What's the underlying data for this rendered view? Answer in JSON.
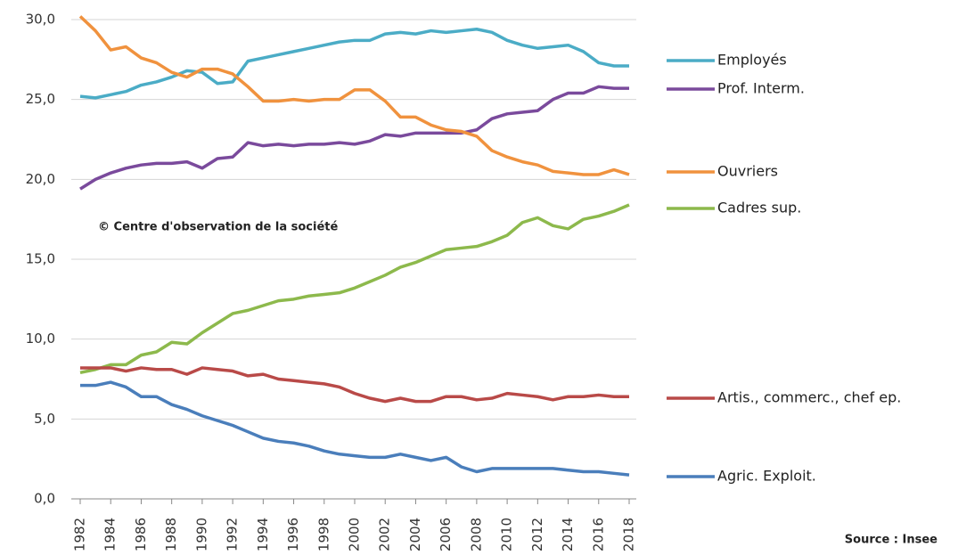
{
  "chart_data": {
    "type": "line",
    "x": [
      1982,
      1983,
      1984,
      1985,
      1986,
      1987,
      1988,
      1989,
      1990,
      1991,
      1992,
      1993,
      1994,
      1995,
      1996,
      1997,
      1998,
      1999,
      2000,
      2001,
      2002,
      2003,
      2004,
      2005,
      2006,
      2007,
      2008,
      2009,
      2010,
      2011,
      2012,
      2013,
      2014,
      2015,
      2016,
      2017,
      2018
    ],
    "xlim": [
      1982,
      2018
    ],
    "xticks": [
      1982,
      1984,
      1986,
      1988,
      1990,
      1992,
      1994,
      1996,
      1998,
      2000,
      2002,
      2004,
      2006,
      2008,
      2010,
      2012,
      2014,
      2016,
      2018
    ],
    "ylim": [
      0,
      30
    ],
    "yticks": [
      {
        "value": 0,
        "label": "0,0"
      },
      {
        "value": 5,
        "label": "5,0"
      },
      {
        "value": 10,
        "label": "10,0"
      },
      {
        "value": 15,
        "label": "15,0"
      },
      {
        "value": 20,
        "label": "20,0"
      },
      {
        "value": 25,
        "label": "25,0"
      },
      {
        "value": 30,
        "label": "30,0"
      }
    ],
    "grid": true,
    "annotations": [
      "© Centre d'observation de la société",
      "Source : Insee"
    ],
    "series": [
      {
        "name": "Employés",
        "color": "#4bacc6",
        "values": [
          25.2,
          25.1,
          25.3,
          25.5,
          25.9,
          26.1,
          26.4,
          26.8,
          26.7,
          26.0,
          26.1,
          27.4,
          27.6,
          27.8,
          28.0,
          28.2,
          28.4,
          28.6,
          28.7,
          28.7,
          29.1,
          29.2,
          29.1,
          29.3,
          29.2,
          29.3,
          29.4,
          29.2,
          28.7,
          28.4,
          28.2,
          28.3,
          28.4,
          28.0,
          27.3,
          27.1,
          27.1
        ]
      },
      {
        "name": "Prof. Interm.",
        "color": "#7a4a9c",
        "values": [
          19.4,
          20.0,
          20.4,
          20.7,
          20.9,
          21.0,
          21.0,
          21.1,
          20.7,
          21.3,
          21.4,
          22.3,
          22.1,
          22.2,
          22.1,
          22.2,
          22.2,
          22.3,
          22.2,
          22.4,
          22.8,
          22.7,
          22.9,
          22.9,
          22.9,
          22.9,
          23.1,
          23.8,
          24.1,
          24.2,
          24.3,
          25.0,
          25.4,
          25.4,
          25.8,
          25.7,
          25.7
        ]
      },
      {
        "name": "Ouvriers",
        "color": "#f0923e",
        "values": [
          30.2,
          29.3,
          28.1,
          28.3,
          27.6,
          27.3,
          26.7,
          26.4,
          26.9,
          26.9,
          26.6,
          25.8,
          24.9,
          24.9,
          25.0,
          24.9,
          25.0,
          25.0,
          25.6,
          25.6,
          24.9,
          23.9,
          23.9,
          23.4,
          23.1,
          23.0,
          22.7,
          21.8,
          21.4,
          21.1,
          20.9,
          20.5,
          20.4,
          20.3,
          20.3,
          20.6,
          20.3
        ]
      },
      {
        "name": "Cadres sup.",
        "color": "#8db94c",
        "values": [
          7.9,
          8.1,
          8.4,
          8.4,
          9.0,
          9.2,
          9.8,
          9.7,
          10.4,
          11.0,
          11.6,
          11.8,
          12.1,
          12.4,
          12.5,
          12.7,
          12.8,
          12.9,
          13.2,
          13.6,
          14.0,
          14.5,
          14.8,
          15.2,
          15.6,
          15.7,
          15.8,
          16.1,
          16.5,
          17.3,
          17.6,
          17.1,
          16.9,
          17.5,
          17.7,
          18.0,
          18.4
        ]
      },
      {
        "name": "Artis., commerc., chef ep.",
        "color": "#b94a48",
        "values": [
          8.2,
          8.2,
          8.2,
          8.0,
          8.2,
          8.1,
          8.1,
          7.8,
          8.2,
          8.1,
          8.0,
          7.7,
          7.8,
          7.5,
          7.4,
          7.3,
          7.2,
          7.0,
          6.6,
          6.3,
          6.1,
          6.3,
          6.1,
          6.1,
          6.4,
          6.4,
          6.2,
          6.3,
          6.6,
          6.5,
          6.4,
          6.2,
          6.4,
          6.4,
          6.5,
          6.4,
          6.4
        ]
      },
      {
        "name": "Agric. Exploit.",
        "color": "#4a7ebb",
        "values": [
          7.1,
          7.1,
          7.3,
          7.0,
          6.4,
          6.4,
          5.9,
          5.6,
          5.2,
          4.9,
          4.6,
          4.2,
          3.8,
          3.6,
          3.5,
          3.3,
          3.0,
          2.8,
          2.7,
          2.6,
          2.6,
          2.8,
          2.6,
          2.4,
          2.6,
          2.0,
          1.7,
          1.9,
          1.9,
          1.9,
          1.9,
          1.9,
          1.8,
          1.7,
          1.7,
          1.6,
          1.5
        ]
      }
    ]
  }
}
